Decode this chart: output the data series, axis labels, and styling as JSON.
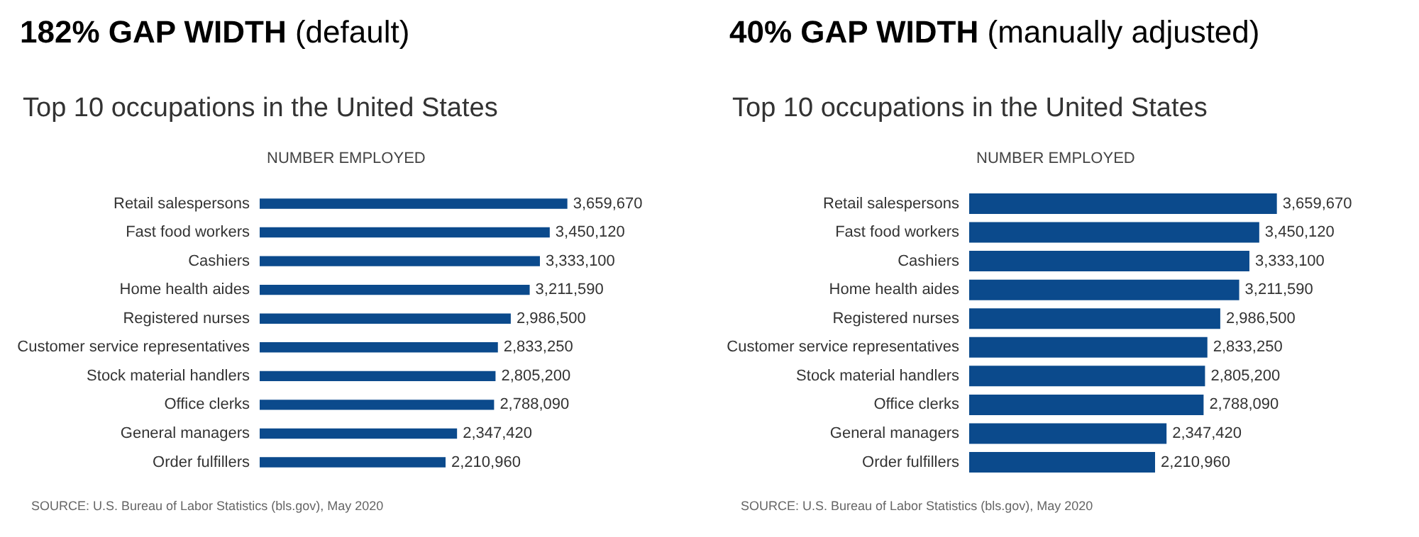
{
  "chart_data": [
    {
      "type": "bar",
      "orientation": "horizontal",
      "title": "182% GAP WIDTH (default)",
      "subtitle": "Top 10 occupations in the United States",
      "xlabel": "NUMBER EMPLOYED",
      "categories": [
        "Retail salespersons",
        "Fast food workers",
        "Cashiers",
        "Home health aides",
        "Registered nurses",
        "Customer service representatives",
        "Stock material handlers",
        "Office clerks",
        "General managers",
        "Order fulfillers"
      ],
      "values": [
        3659670,
        3450120,
        3333100,
        3211590,
        2986500,
        2833250,
        2805200,
        2788090,
        2347420,
        2210960
      ],
      "color": "#0b4a8c",
      "tick_labels": "y",
      "value_labels": [
        "3,659,670",
        "3,450,120",
        "3,333,100",
        "3,211,590",
        "2,986,500",
        "2,833,250",
        "2,805,200",
        "2,788,090",
        "2,347,420",
        "2,210,960"
      ],
      "annotations": [
        "SOURCE: U.S. Bureau of Labor Statistics (bls.gov), May 2020"
      ]
    },
    {
      "type": "bar",
      "orientation": "horizontal",
      "title": "40% GAP WIDTH (manually adjusted)",
      "subtitle": "Top 10 occupations in the United States",
      "xlabel": "NUMBER EMPLOYED",
      "categories": [
        "Retail salespersons",
        "Fast food workers",
        "Cashiers",
        "Home health aides",
        "Registered nurses",
        "Customer service representatives",
        "Stock material handlers",
        "Office clerks",
        "General managers",
        "Order fulfillers"
      ],
      "values": [
        3659670,
        3450120,
        3333100,
        3211590,
        2986500,
        2833250,
        2805200,
        2788090,
        2347420,
        2210960
      ],
      "color": "#0b4a8c",
      "tick_labels": "y",
      "value_labels": [
        "3,659,670",
        "3,450,120",
        "3,333,100",
        "3,211,590",
        "2,986,500",
        "2,833,250",
        "2,805,200",
        "2,788,090",
        "2,347,420",
        "2,210,960"
      ],
      "annotations": [
        "SOURCE: U.S. Bureau of Labor Statistics (bls.gov), May 2020"
      ]
    }
  ]
}
